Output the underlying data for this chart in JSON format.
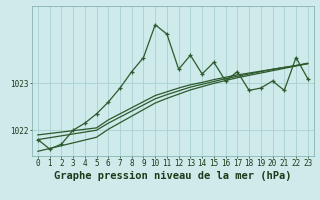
{
  "title": "Graphe pression niveau de la mer (hPa)",
  "x_hours": [
    0,
    1,
    2,
    3,
    4,
    5,
    6,
    7,
    8,
    9,
    10,
    11,
    12,
    13,
    14,
    15,
    16,
    17,
    18,
    19,
    20,
    21,
    22,
    23
  ],
  "main_line": [
    1021.8,
    1021.6,
    1021.7,
    1022.0,
    1022.15,
    1022.35,
    1022.6,
    1022.9,
    1023.25,
    1023.55,
    1024.25,
    1024.05,
    1023.3,
    1023.6,
    1023.2,
    1023.45,
    1023.05,
    1023.25,
    1022.85,
    1022.9,
    1023.05,
    1022.85,
    1023.55,
    1023.1
  ],
  "trend1": [
    1021.9,
    1021.93,
    1021.96,
    1021.99,
    1022.02,
    1022.05,
    1022.22,
    1022.35,
    1022.48,
    1022.61,
    1022.74,
    1022.82,
    1022.9,
    1022.97,
    1023.02,
    1023.08,
    1023.13,
    1023.18,
    1023.22,
    1023.26,
    1023.3,
    1023.34,
    1023.38,
    1023.42
  ],
  "trend2": [
    1021.8,
    1021.84,
    1021.88,
    1021.92,
    1021.96,
    1022.0,
    1022.15,
    1022.28,
    1022.41,
    1022.54,
    1022.67,
    1022.76,
    1022.84,
    1022.92,
    1022.98,
    1023.04,
    1023.1,
    1023.15,
    1023.2,
    1023.25,
    1023.3,
    1023.34,
    1023.38,
    1023.43
  ],
  "trend3": [
    1021.55,
    1021.61,
    1021.67,
    1021.73,
    1021.79,
    1021.85,
    1022.02,
    1022.16,
    1022.3,
    1022.44,
    1022.58,
    1022.68,
    1022.77,
    1022.86,
    1022.93,
    1023.0,
    1023.06,
    1023.12,
    1023.17,
    1023.22,
    1023.27,
    1023.32,
    1023.37,
    1023.42
  ],
  "bg_color": "#ceeaea",
  "line_color": "#2d5a2d",
  "grid_color": "#aad0d0",
  "text_color": "#1a3a1a",
  "ylim_min": 1021.45,
  "ylim_max": 1024.65,
  "title_fontsize": 7.5,
  "tick_fontsize": 5.5
}
